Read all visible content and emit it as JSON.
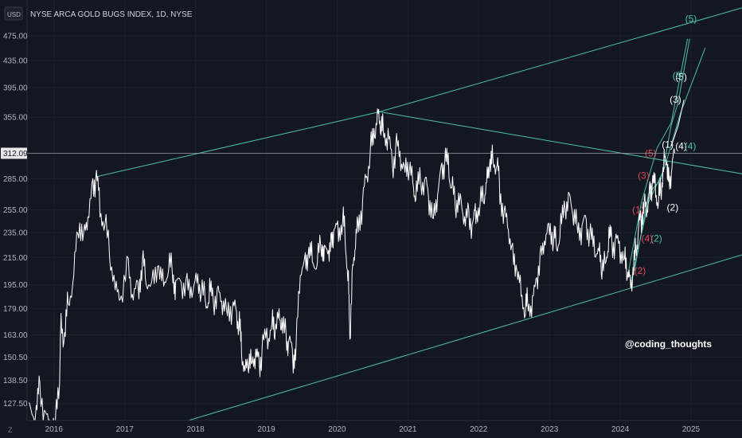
{
  "header": {
    "currency": "USD",
    "title": "NYSE ARCA GOLD BUGS INDEX, 1D, NYSE"
  },
  "watermark": "@coding_thoughts",
  "footer_icon": "Z",
  "chart_data": {
    "type": "line",
    "title": "NYSE ARCA GOLD BUGS INDEX, 1D, NYSE",
    "yscale": "log",
    "ylim": [
      120,
      540
    ],
    "xlim": [
      2015.62,
      2025.72
    ],
    "y_ticks": [
      "127.50",
      "138.50",
      "150.50",
      "163.00",
      "179.00",
      "195.00",
      "215.00",
      "235.00",
      "255.00",
      "285.00",
      "355.00",
      "395.00",
      "435.00",
      "475.00"
    ],
    "x_ticks": [
      "2016",
      "2017",
      "2018",
      "2019",
      "2020",
      "2021",
      "2022",
      "2023",
      "2024",
      "2025"
    ],
    "last_price": "312.09",
    "series": [
      {
        "color": "#ffffff",
        "points": [
          [
            2015.65,
            128
          ],
          [
            2015.75,
            122
          ],
          [
            2015.8,
            137
          ],
          [
            2015.88,
            120
          ],
          [
            2015.95,
            118
          ],
          [
            2016.02,
            120
          ],
          [
            2016.08,
            140
          ],
          [
            2016.1,
            172
          ],
          [
            2016.15,
            158
          ],
          [
            2016.2,
            185
          ],
          [
            2016.28,
            200
          ],
          [
            2016.35,
            245
          ],
          [
            2016.42,
            232
          ],
          [
            2016.48,
            248
          ],
          [
            2016.55,
            276
          ],
          [
            2016.6,
            287
          ],
          [
            2016.65,
            258
          ],
          [
            2016.72,
            242
          ],
          [
            2016.8,
            215
          ],
          [
            2016.88,
            190
          ],
          [
            2016.95,
            185
          ],
          [
            2017.05,
            210
          ],
          [
            2017.12,
            185
          ],
          [
            2017.2,
            195
          ],
          [
            2017.25,
            212
          ],
          [
            2017.3,
            200
          ],
          [
            2017.4,
            195
          ],
          [
            2017.48,
            208
          ],
          [
            2017.55,
            194
          ],
          [
            2017.62,
            210
          ],
          [
            2017.68,
            205
          ],
          [
            2017.72,
            192
          ],
          [
            2017.8,
            197
          ],
          [
            2017.88,
            193
          ],
          [
            2017.95,
            190
          ],
          [
            2018.02,
            200
          ],
          [
            2018.08,
            192
          ],
          [
            2018.15,
            183
          ],
          [
            2018.2,
            190
          ],
          [
            2018.25,
            185
          ],
          [
            2018.32,
            188
          ],
          [
            2018.38,
            183
          ],
          [
            2018.45,
            178
          ],
          [
            2018.52,
            180
          ],
          [
            2018.58,
            176
          ],
          [
            2018.62,
            168
          ],
          [
            2018.65,
            155
          ],
          [
            2018.7,
            142
          ],
          [
            2018.75,
            150
          ],
          [
            2018.8,
            148
          ],
          [
            2018.85,
            152
          ],
          [
            2018.9,
            146
          ],
          [
            2018.95,
            157
          ],
          [
            2019.02,
            162
          ],
          [
            2019.08,
            170
          ],
          [
            2019.12,
            167
          ],
          [
            2019.18,
            175
          ],
          [
            2019.22,
            168
          ],
          [
            2019.28,
            162
          ],
          [
            2019.32,
            158
          ],
          [
            2019.38,
            151
          ],
          [
            2019.42,
            155
          ],
          [
            2019.48,
            205
          ],
          [
            2019.55,
            210
          ],
          [
            2019.6,
            218
          ],
          [
            2019.65,
            215
          ],
          [
            2019.72,
            211
          ],
          [
            2019.78,
            228
          ],
          [
            2019.82,
            218
          ],
          [
            2019.88,
            220
          ],
          [
            2019.92,
            226
          ],
          [
            2019.96,
            238
          ],
          [
            2020.02,
            236
          ],
          [
            2020.08,
            248
          ],
          [
            2020.12,
            228
          ],
          [
            2020.16,
            195
          ],
          [
            2020.18,
            160
          ],
          [
            2020.22,
            205
          ],
          [
            2020.26,
            228
          ],
          [
            2020.3,
            245
          ],
          [
            2020.36,
            260
          ],
          [
            2020.42,
            290
          ],
          [
            2020.48,
            318
          ],
          [
            2020.53,
            335
          ],
          [
            2020.58,
            360
          ],
          [
            2020.62,
            345
          ],
          [
            2020.66,
            338
          ],
          [
            2020.72,
            330
          ],
          [
            2020.78,
            300
          ],
          [
            2020.84,
            320
          ],
          [
            2020.9,
            305
          ],
          [
            2020.96,
            295
          ],
          [
            2021.02,
            300
          ],
          [
            2021.08,
            275
          ],
          [
            2021.12,
            270
          ],
          [
            2021.18,
            285
          ],
          [
            2021.25,
            280
          ],
          [
            2021.3,
            265
          ],
          [
            2021.36,
            248
          ],
          [
            2021.42,
            270
          ],
          [
            2021.48,
            295
          ],
          [
            2021.53,
            305
          ],
          [
            2021.58,
            295
          ],
          [
            2021.62,
            275
          ],
          [
            2021.68,
            262
          ],
          [
            2021.74,
            265
          ],
          [
            2021.8,
            245
          ],
          [
            2021.86,
            250
          ],
          [
            2021.92,
            240
          ],
          [
            2021.96,
            255
          ],
          [
            2022.02,
            260
          ],
          [
            2022.08,
            270
          ],
          [
            2022.12,
            285
          ],
          [
            2022.16,
            300
          ],
          [
            2022.2,
            305
          ],
          [
            2022.26,
            300
          ],
          [
            2022.3,
            275
          ],
          [
            2022.36,
            250
          ],
          [
            2022.42,
            240
          ],
          [
            2022.48,
            215
          ],
          [
            2022.54,
            205
          ],
          [
            2022.6,
            190
          ],
          [
            2022.66,
            178
          ],
          [
            2022.7,
            185
          ],
          [
            2022.76,
            180
          ],
          [
            2022.82,
            200
          ],
          [
            2022.88,
            215
          ],
          [
            2022.94,
            230
          ],
          [
            2023.0,
            240
          ],
          [
            2023.06,
            232
          ],
          [
            2023.1,
            225
          ],
          [
            2023.16,
            238
          ],
          [
            2023.22,
            258
          ],
          [
            2023.28,
            265
          ],
          [
            2023.34,
            252
          ],
          [
            2023.4,
            240
          ],
          [
            2023.46,
            238
          ],
          [
            2023.52,
            245
          ],
          [
            2023.58,
            230
          ],
          [
            2023.64,
            222
          ],
          [
            2023.7,
            220
          ],
          [
            2023.74,
            208
          ],
          [
            2023.8,
            212
          ],
          [
            2023.84,
            232
          ],
          [
            2023.88,
            228
          ],
          [
            2023.94,
            226
          ],
          [
            2024.0,
            222
          ],
          [
            2024.06,
            215
          ],
          [
            2024.1,
            205
          ],
          [
            2024.14,
            197
          ],
          [
            2024.18,
            200
          ],
          [
            2024.22,
            222
          ],
          [
            2024.26,
            238
          ],
          [
            2024.3,
            250
          ],
          [
            2024.34,
            262
          ],
          [
            2024.38,
            255
          ],
          [
            2024.42,
            272
          ],
          [
            2024.46,
            282
          ],
          [
            2024.5,
            275
          ],
          [
            2024.54,
            262
          ],
          [
            2024.58,
            278
          ],
          [
            2024.62,
            305
          ],
          [
            2024.66,
            300
          ],
          [
            2024.69,
            278
          ],
          [
            2024.73,
            296
          ],
          [
            2024.77,
            312
          ]
        ]
      }
    ],
    "channel_lines": [
      {
        "color": "#4dc0a8",
        "points": [
          [
            2016.6,
            287
          ],
          [
            2020.6,
            362
          ],
          [
            2025.72,
            525
          ]
        ]
      },
      {
        "color": "#4dc0a8",
        "points": [
          [
            2017.9,
            120
          ],
          [
            2025.72,
            217
          ]
        ]
      },
      {
        "color": "#4dc0a8",
        "points": [
          [
            2020.6,
            362
          ],
          [
            2025.72,
            290
          ]
        ]
      },
      {
        "color": "#4dc0a8",
        "points": [
          [
            2024.1,
            200
          ],
          [
            2024.3,
            262
          ],
          [
            2024.52,
            318
          ],
          [
            2024.72,
            348
          ],
          [
            2024.95,
            470
          ]
        ]
      },
      {
        "color": "#4dc0a8",
        "points": [
          [
            2024.14,
            195
          ],
          [
            2024.4,
            262
          ],
          [
            2024.62,
            295
          ],
          [
            2024.85,
            360
          ],
          [
            2025.2,
            455
          ]
        ]
      },
      {
        "color": "#4dc0a8",
        "points": [
          [
            2024.2,
            205
          ],
          [
            2024.4,
            270
          ],
          [
            2024.58,
            285
          ],
          [
            2024.72,
            345
          ],
          [
            2024.82,
            375
          ],
          [
            2024.98,
            470
          ]
        ]
      },
      {
        "color": "#ffffff",
        "points": [
          [
            2024.72,
            320
          ],
          [
            2024.82,
            345
          ],
          [
            2024.9,
            378
          ]
        ]
      }
    ],
    "wave_labels": [
      {
        "text": "(1)",
        "x": 2024.67,
        "y": 322,
        "color": "#ffffff"
      },
      {
        "text": "(2)",
        "x": 2024.74,
        "y": 257,
        "color": "#ffffff"
      },
      {
        "text": "(3)",
        "x": 2024.78,
        "y": 378,
        "color": "#ffffff"
      },
      {
        "text": "(4)",
        "x": 2024.86,
        "y": 320,
        "color": "#ffffff"
      },
      {
        "text": "(5)",
        "x": 2024.86,
        "y": 410,
        "color": "#ffffff"
      },
      {
        "text": "(4)",
        "x": 2024.99,
        "y": 320,
        "color": "#4dc0a8"
      },
      {
        "text": "(5)",
        "x": 2025.0,
        "y": 505,
        "color": "#4dc0a8"
      },
      {
        "text": "(5)",
        "x": 2024.82,
        "y": 412,
        "color": "#4dc0a8"
      },
      {
        "text": "(2)",
        "x": 2024.51,
        "y": 230,
        "color": "#4dc0a8"
      },
      {
        "text": "(1)",
        "x": 2024.25,
        "y": 255,
        "color": "#e0485a"
      },
      {
        "text": "(2)",
        "x": 2024.28,
        "y": 205,
        "color": "#e0485a"
      },
      {
        "text": "(3)",
        "x": 2024.33,
        "y": 288,
        "color": "#e0485a"
      },
      {
        "text": "(4)",
        "x": 2024.38,
        "y": 230,
        "color": "#e0485a"
      },
      {
        "text": "(5)",
        "x": 2024.43,
        "y": 312,
        "color": "#e0485a"
      }
    ]
  }
}
